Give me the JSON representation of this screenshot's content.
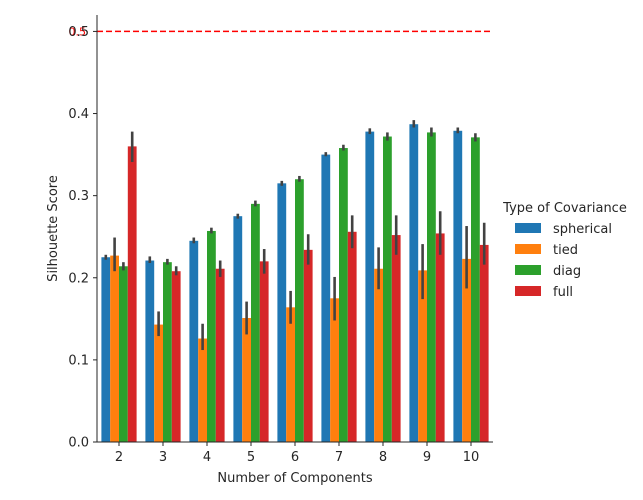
{
  "chart_data": {
    "type": "bar",
    "xlabel": "Number of Components",
    "ylabel": "Silhouette Score",
    "categories": [
      "2",
      "3",
      "4",
      "5",
      "6",
      "7",
      "8",
      "9",
      "10"
    ],
    "ylim": [
      0.0,
      0.52
    ],
    "yticks": [
      "0.0",
      "0.1",
      "0.2",
      "0.3",
      "0.4",
      "0.5"
    ],
    "grid": false,
    "legend": {
      "title": "Type of Covariance",
      "placement": "right"
    },
    "series": [
      {
        "name": "spherical",
        "color": "#1f77b4",
        "values": [
          0.225,
          0.221,
          0.245,
          0.275,
          0.315,
          0.35,
          0.378,
          0.387,
          0.379
        ],
        "ci": [
          [
            0.222,
            0.228
          ],
          [
            0.218,
            0.226
          ],
          [
            0.242,
            0.249
          ],
          [
            0.272,
            0.278
          ],
          [
            0.312,
            0.318
          ],
          [
            0.348,
            0.353
          ],
          [
            0.375,
            0.382
          ],
          [
            0.383,
            0.392
          ],
          [
            0.376,
            0.383
          ]
        ]
      },
      {
        "name": "tied",
        "color": "#ff7f0e",
        "values": [
          0.227,
          0.143,
          0.126,
          0.151,
          0.164,
          0.175,
          0.211,
          0.209,
          0.223
        ],
        "ci": [
          [
            0.208,
            0.249
          ],
          [
            0.129,
            0.159
          ],
          [
            0.112,
            0.144
          ],
          [
            0.131,
            0.171
          ],
          [
            0.144,
            0.184
          ],
          [
            0.148,
            0.201
          ],
          [
            0.186,
            0.237
          ],
          [
            0.174,
            0.241
          ],
          [
            0.187,
            0.263
          ]
        ]
      },
      {
        "name": "diag",
        "color": "#2ca02c",
        "values": [
          0.214,
          0.219,
          0.257,
          0.29,
          0.32,
          0.358,
          0.372,
          0.377,
          0.371
        ],
        "ci": [
          [
            0.209,
            0.219
          ],
          [
            0.216,
            0.223
          ],
          [
            0.254,
            0.261
          ],
          [
            0.287,
            0.294
          ],
          [
            0.317,
            0.324
          ],
          [
            0.355,
            0.362
          ],
          [
            0.367,
            0.377
          ],
          [
            0.372,
            0.383
          ],
          [
            0.366,
            0.376
          ]
        ]
      },
      {
        "name": "full",
        "color": "#d62728",
        "values": [
          0.36,
          0.208,
          0.211,
          0.22,
          0.234,
          0.256,
          0.252,
          0.254,
          0.24
        ],
        "ci": [
          [
            0.341,
            0.378
          ],
          [
            0.203,
            0.214
          ],
          [
            0.201,
            0.221
          ],
          [
            0.205,
            0.235
          ],
          [
            0.216,
            0.253
          ],
          [
            0.236,
            0.276
          ],
          [
            0.228,
            0.276
          ],
          [
            0.228,
            0.281
          ],
          [
            0.216,
            0.267
          ]
        ]
      }
    ],
    "reference_line": {
      "y": 0.5,
      "label": "0.5",
      "color": "#ff0000",
      "style": "dashed"
    }
  }
}
